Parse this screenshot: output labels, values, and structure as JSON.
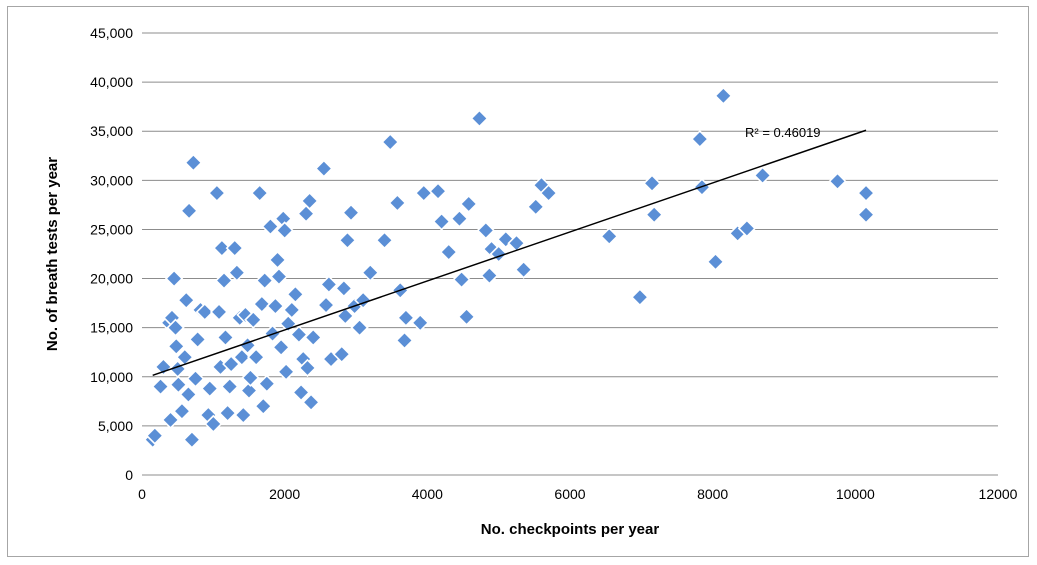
{
  "chart_data": {
    "type": "scatter",
    "title": "",
    "xlabel": "No. checkpoints per year",
    "ylabel": "No. of breath tests per year",
    "xlim": [
      0,
      12000
    ],
    "ylim": [
      0,
      45000
    ],
    "x_ticks": [
      "0",
      "2000",
      "4000",
      "6000",
      "8000",
      "10000",
      "12000"
    ],
    "y_ticks": [
      "0",
      "5,000",
      "10,000",
      "15,000",
      "20,000",
      "25,000",
      "30,000",
      "35,000",
      "40,000",
      "45,000"
    ],
    "grid": "horizontal",
    "legend": "none",
    "marker_color": "#5b8fd6",
    "trendline": {
      "type": "linear",
      "x": [
        150,
        10150
      ],
      "y": [
        10150,
        35100
      ],
      "label": "R² = 0.46019",
      "color": "#000000"
    },
    "series": [
      {
        "points": [
          [
            150,
            3600
          ],
          [
            180,
            4000
          ],
          [
            260,
            9000
          ],
          [
            300,
            11000
          ],
          [
            380,
            15500
          ],
          [
            400,
            5600
          ],
          [
            420,
            16000
          ],
          [
            450,
            20000
          ],
          [
            470,
            15000
          ],
          [
            480,
            13100
          ],
          [
            500,
            10800
          ],
          [
            510,
            9200
          ],
          [
            560,
            6500
          ],
          [
            600,
            12000
          ],
          [
            620,
            17800
          ],
          [
            650,
            8200
          ],
          [
            660,
            26900
          ],
          [
            700,
            3600
          ],
          [
            720,
            31800
          ],
          [
            750,
            9800
          ],
          [
            780,
            13800
          ],
          [
            820,
            16800
          ],
          [
            880,
            16600
          ],
          [
            930,
            6100
          ],
          [
            950,
            8800
          ],
          [
            1000,
            5200
          ],
          [
            1050,
            28700
          ],
          [
            1080,
            16600
          ],
          [
            1100,
            11000
          ],
          [
            1120,
            23100
          ],
          [
            1150,
            19800
          ],
          [
            1170,
            14000
          ],
          [
            1200,
            6300
          ],
          [
            1230,
            9000
          ],
          [
            1250,
            11300
          ],
          [
            1300,
            23100
          ],
          [
            1330,
            20600
          ],
          [
            1370,
            16000
          ],
          [
            1400,
            12000
          ],
          [
            1420,
            6100
          ],
          [
            1450,
            16300
          ],
          [
            1480,
            13200
          ],
          [
            1500,
            8600
          ],
          [
            1520,
            9900
          ],
          [
            1560,
            15800
          ],
          [
            1600,
            12000
          ],
          [
            1650,
            28700
          ],
          [
            1680,
            17400
          ],
          [
            1700,
            7000
          ],
          [
            1720,
            19800
          ],
          [
            1750,
            9300
          ],
          [
            1800,
            25300
          ],
          [
            1830,
            14400
          ],
          [
            1870,
            17200
          ],
          [
            1900,
            21900
          ],
          [
            1920,
            20200
          ],
          [
            1950,
            13000
          ],
          [
            1980,
            26100
          ],
          [
            2000,
            24900
          ],
          [
            2020,
            10500
          ],
          [
            2050,
            15400
          ],
          [
            2100,
            16800
          ],
          [
            2150,
            18400
          ],
          [
            2200,
            14300
          ],
          [
            2230,
            8400
          ],
          [
            2260,
            11800
          ],
          [
            2300,
            26600
          ],
          [
            2320,
            10900
          ],
          [
            2350,
            27900
          ],
          [
            2370,
            7400
          ],
          [
            2400,
            14000
          ],
          [
            2550,
            31200
          ],
          [
            2580,
            17300
          ],
          [
            2620,
            19400
          ],
          [
            2650,
            11800
          ],
          [
            2800,
            12300
          ],
          [
            2830,
            19000
          ],
          [
            2850,
            16200
          ],
          [
            2880,
            23900
          ],
          [
            2930,
            26700
          ],
          [
            2980,
            17200
          ],
          [
            3050,
            15000
          ],
          [
            3100,
            17800
          ],
          [
            3200,
            20600
          ],
          [
            3400,
            23900
          ],
          [
            3480,
            33900
          ],
          [
            3580,
            27700
          ],
          [
            3620,
            18800
          ],
          [
            3680,
            13700
          ],
          [
            3700,
            16000
          ],
          [
            3900,
            15500
          ],
          [
            3950,
            28700
          ],
          [
            4150,
            28900
          ],
          [
            4200,
            25800
          ],
          [
            4300,
            22700
          ],
          [
            4450,
            26100
          ],
          [
            4480,
            19900
          ],
          [
            4550,
            16100
          ],
          [
            4580,
            27600
          ],
          [
            4730,
            36300
          ],
          [
            4820,
            24900
          ],
          [
            4870,
            20300
          ],
          [
            4900,
            23000
          ],
          [
            5000,
            22500
          ],
          [
            5100,
            24000
          ],
          [
            5250,
            23600
          ],
          [
            5350,
            20900
          ],
          [
            5520,
            27300
          ],
          [
            5600,
            29500
          ],
          [
            5700,
            28700
          ],
          [
            6550,
            24300
          ],
          [
            6980,
            18100
          ],
          [
            7150,
            29700
          ],
          [
            7180,
            26500
          ],
          [
            7820,
            34200
          ],
          [
            7850,
            29300
          ],
          [
            8040,
            21700
          ],
          [
            8150,
            38600
          ],
          [
            8350,
            24600
          ],
          [
            8480,
            25100
          ],
          [
            8700,
            30500
          ],
          [
            9750,
            29900
          ],
          [
            10150,
            28700
          ],
          [
            10150,
            26500
          ]
        ]
      }
    ]
  }
}
